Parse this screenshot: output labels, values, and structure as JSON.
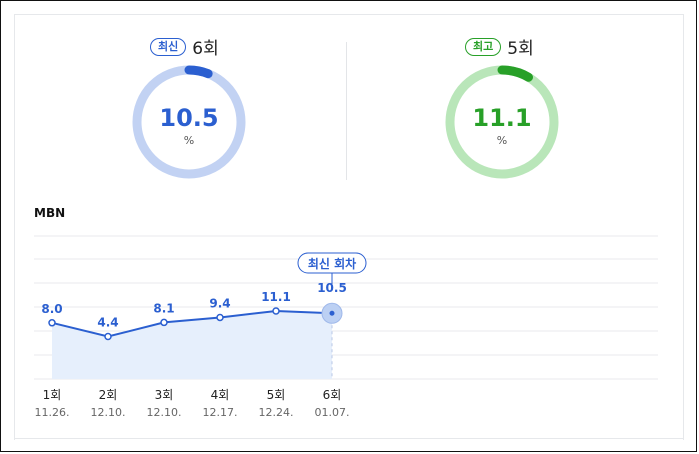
{
  "stats": {
    "latest": {
      "badge": "최신",
      "round": "6회",
      "value": "10.5",
      "unit": "%",
      "fill": 0.06,
      "color": "#2b5fd0",
      "track": "#c2d2f3"
    },
    "best": {
      "badge": "최고",
      "round": "5회",
      "value": "11.1",
      "unit": "%",
      "fill": 0.085,
      "color": "#28a028",
      "track": "#b9e6b9"
    }
  },
  "channel": "MBN",
  "latest_marker_label": "최신 회차",
  "colors": {
    "line": "#2b5fd0",
    "area": "#e6effc",
    "grid": "#e8eaed"
  },
  "chart_data": {
    "type": "line",
    "categories": [
      "1회",
      "2회",
      "3회",
      "4회",
      "5회",
      "6회"
    ],
    "dates": [
      "11.26.",
      "12.10.",
      "12.10.",
      "12.17.",
      "12.24.",
      "01.07."
    ],
    "values": [
      8.0,
      4.4,
      8.1,
      9.4,
      11.1,
      10.5
    ],
    "value_labels": [
      "8.0",
      "4.4",
      "8.1",
      "9.4",
      "11.1",
      "10.5"
    ],
    "highlight_index": 5,
    "grid": true
  }
}
